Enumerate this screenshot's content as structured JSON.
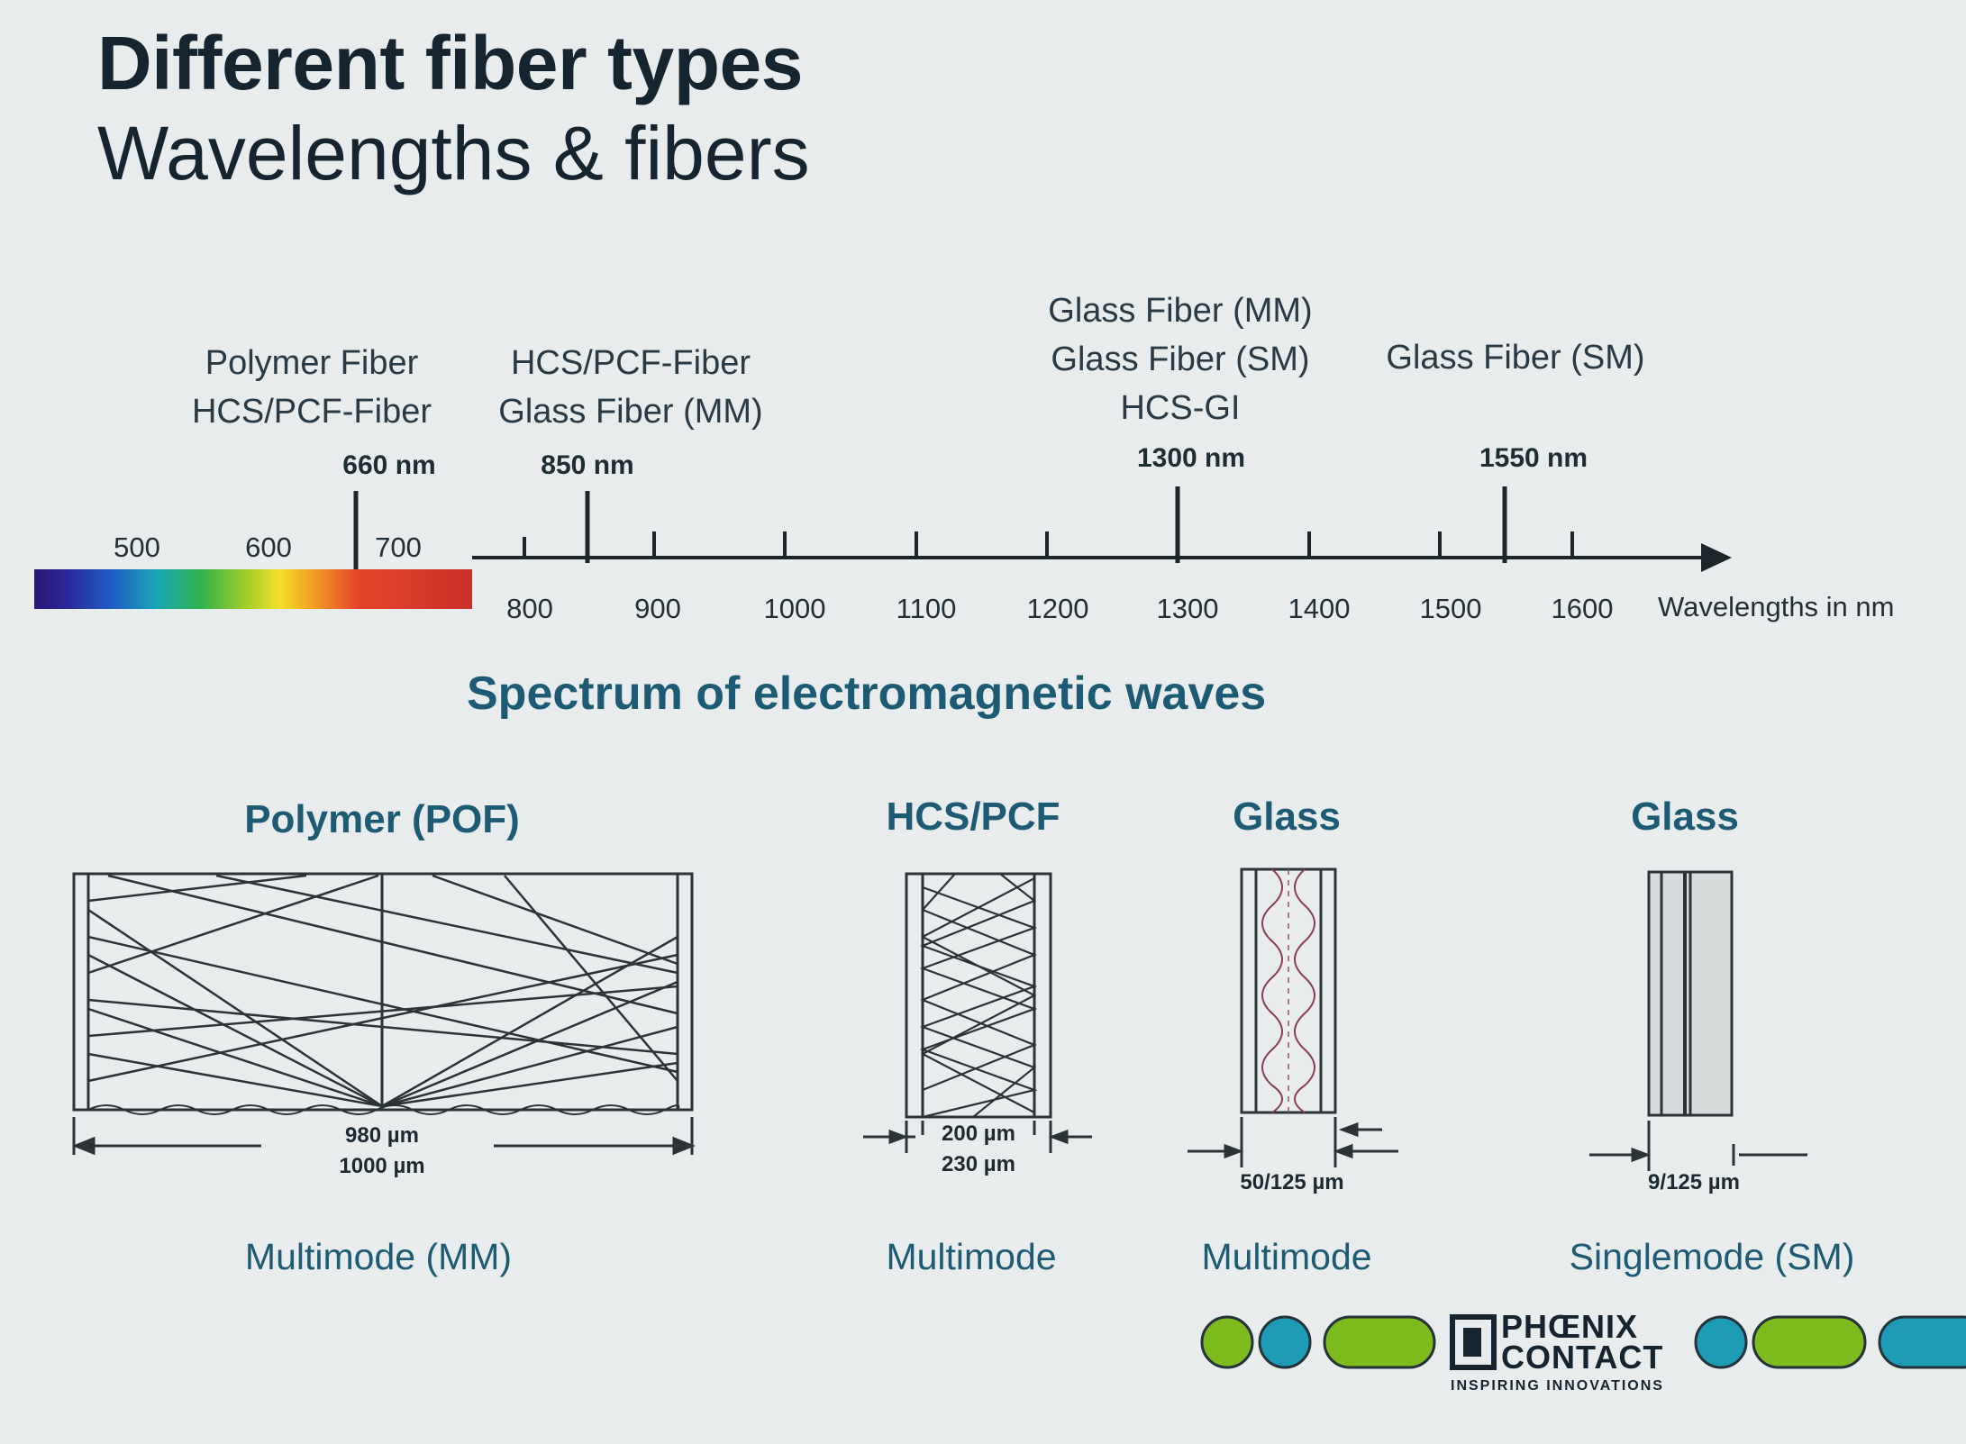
{
  "title": "Different fiber types",
  "subtitle": "Wavelengths & fibers",
  "fiber_groups": [
    {
      "lines": [
        "Polymer Fiber",
        "HCS/PCF-Fiber"
      ],
      "wavelength": "660 nm"
    },
    {
      "lines": [
        "HCS/PCF-Fiber",
        "Glass Fiber (MM)"
      ],
      "wavelength": "850 nm"
    },
    {
      "lines": [
        "Glass Fiber (MM)",
        "Glass Fiber (SM)",
        "HCS-GI"
      ],
      "wavelength": "1300 nm"
    },
    {
      "lines": [
        "Glass Fiber (SM)"
      ],
      "wavelength": "1550 nm"
    }
  ],
  "axis": {
    "visible_ticks": [
      "500",
      "600",
      "700"
    ],
    "ticks": [
      "800",
      "900",
      "1000",
      "1100",
      "1200",
      "1300",
      "1400",
      "1500",
      "1600"
    ],
    "label": "Wavelengths in nm"
  },
  "spectrum_title": "Spectrum of electromagnetic waves",
  "panels": [
    {
      "title": "Polymer (POF)",
      "dims": [
        "980 µm",
        "1000 µm"
      ],
      "mode": "Multimode (MM)"
    },
    {
      "title": "HCS/PCF",
      "dims": [
        "200 µm",
        "230 µm"
      ],
      "mode": "Multimode"
    },
    {
      "title": "Glass",
      "dims": [
        "50/125 µm"
      ],
      "mode": "Multimode"
    },
    {
      "title": "Glass",
      "dims": [
        "9/125 µm"
      ],
      "mode": "Singlemode (SM)"
    }
  ],
  "logo": {
    "line1": "PHŒNIX",
    "line2": "CONTACT",
    "tagline": "INSPIRING INNOVATIONS"
  },
  "colors": {
    "accent": "#1d5a73",
    "logo_green": "#7dbb1e",
    "logo_blue": "#1e9bb5"
  }
}
